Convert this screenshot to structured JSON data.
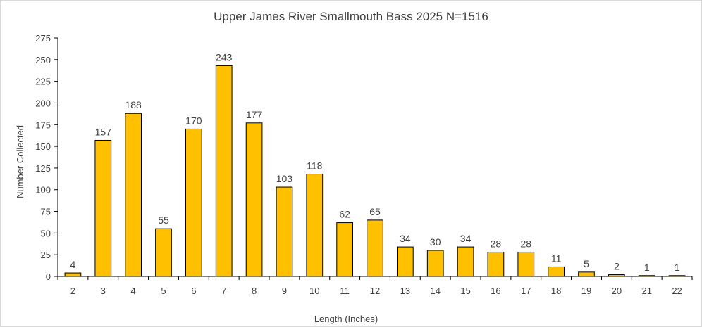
{
  "chart_data": {
    "type": "bar",
    "title": "Upper James River Smallmouth Bass 2025 N=1516",
    "xlabel": "Length (Inches)",
    "ylabel": "Number Collected",
    "categories": [
      "2",
      "3",
      "4",
      "5",
      "6",
      "7",
      "8",
      "9",
      "10",
      "11",
      "12",
      "13",
      "14",
      "15",
      "16",
      "17",
      "18",
      "19",
      "20",
      "21",
      "22"
    ],
    "values": [
      4,
      157,
      188,
      55,
      170,
      243,
      177,
      103,
      118,
      62,
      65,
      34,
      30,
      34,
      28,
      28,
      11,
      5,
      2,
      1,
      1
    ],
    "ylim": [
      0,
      275
    ],
    "yticks": [
      0,
      25,
      50,
      75,
      100,
      125,
      150,
      175,
      200,
      225,
      250,
      275
    ],
    "grid": false,
    "bar_color": "#ffc000",
    "bar_edge_color": "#000000"
  }
}
